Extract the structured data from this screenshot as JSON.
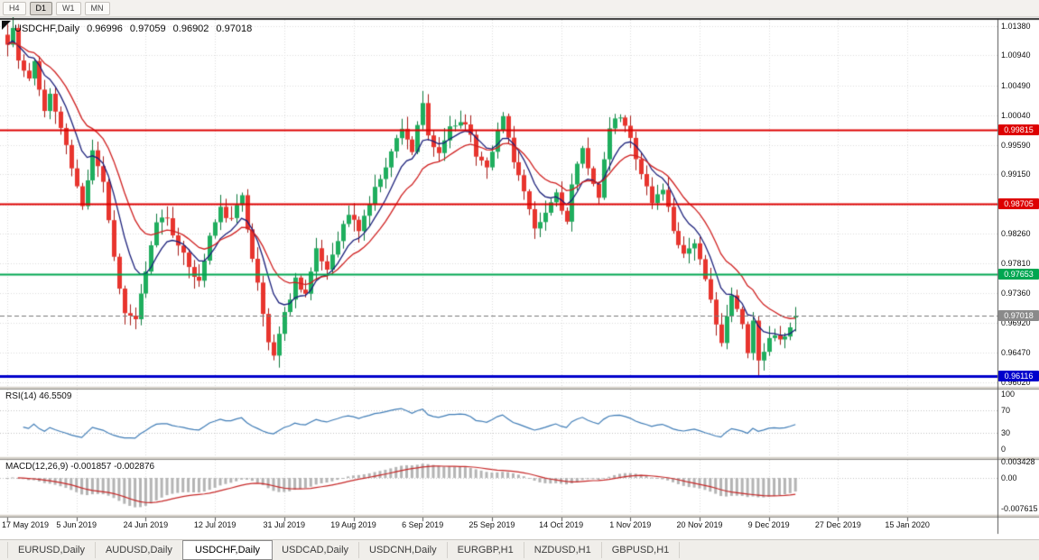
{
  "toolbar": {
    "timeframes": [
      {
        "label": "H4",
        "active": false
      },
      {
        "label": "D1",
        "active": true
      },
      {
        "label": "W1",
        "active": false
      },
      {
        "label": "MN",
        "active": false
      }
    ]
  },
  "chart_header": {
    "symbol": "USDCHF,Daily",
    "open": "0.96996",
    "high": "0.97059",
    "low": "0.96902",
    "close": "0.97018"
  },
  "main_chart": {
    "price_axis": {
      "ticks": [
        "1.01380",
        "1.00940",
        "1.00490",
        "1.00040",
        "0.99590",
        "0.99150",
        "0.98700",
        "0.98260",
        "0.97810",
        "0.97360",
        "0.96920",
        "0.96470",
        "0.96020"
      ],
      "max": 1.0138,
      "min": 0.9602
    },
    "hlines": [
      {
        "label": "0.99815",
        "value": 0.99815,
        "color": "#dd0000",
        "width": 2
      },
      {
        "label": "0.98705",
        "value": 0.98705,
        "color": "#dd0000",
        "width": 2
      },
      {
        "label": "0.97653",
        "value": 0.97653,
        "color": "#00a651",
        "width": 2
      },
      {
        "label": "0.96116",
        "value": 0.96116,
        "color": "#0000cc",
        "width": 3
      }
    ],
    "current_price": {
      "label": "0.97018",
      "value": 0.97018,
      "color": "#8a8a8a"
    }
  },
  "rsi_panel": {
    "label": "RSI(14) 46.5509",
    "value": 46.5509,
    "period": 14,
    "ticks": [
      {
        "label": "100",
        "value": 100
      },
      {
        "label": "70",
        "value": 70
      },
      {
        "label": "30",
        "value": 30
      },
      {
        "label": "0",
        "value": 0
      }
    ],
    "levels": [
      70,
      30
    ]
  },
  "macd_panel": {
    "label": "MACD(12,26,9) -0.001857 -0.002876",
    "macd_value": -0.001857,
    "signal_value": -0.002876,
    "ticks": [
      {
        "label": "0.003428",
        "value": 0.003428
      },
      {
        "label": "0.00",
        "value": 0
      },
      {
        "label": "-0.007615",
        "value": -0.007615
      }
    ],
    "max": 0.003428,
    "min": -0.007615
  },
  "date_axis": {
    "labels": [
      "17 May 2019",
      "5 Jun 2019",
      "24 Jun 2019",
      "12 Jul 2019",
      "31 Jul 2019",
      "19 Aug 2019",
      "6 Sep 2019",
      "25 Sep 2019",
      "14 Oct 2019",
      "1 Nov 2019",
      "20 Nov 2019",
      "9 Dec 2019",
      "27 Dec 2019",
      "15 Jan 2020"
    ],
    "tick_days": [
      0,
      13,
      26,
      39,
      52,
      65,
      78,
      91,
      104,
      117,
      130,
      143,
      156,
      169
    ]
  },
  "tabs": [
    {
      "label": "EURUSD,Daily",
      "active": false
    },
    {
      "label": "AUDUSD,Daily",
      "active": false
    },
    {
      "label": "USDCHF,Daily",
      "active": true
    },
    {
      "label": "USDCAD,Daily",
      "active": false
    },
    {
      "label": "USDCNH,Daily",
      "active": false
    },
    {
      "label": "EURGBP,H1",
      "active": false
    },
    {
      "label": "NZDUSD,H1",
      "active": false
    },
    {
      "label": "GBPUSD,H1",
      "active": false
    }
  ],
  "colors": {
    "up": "#1fae5e",
    "up_border": "#0d7a3c",
    "down": "#e8352e",
    "down_border": "#a51b16",
    "ma_fast": "#1a1f7a",
    "ma_slow": "#cf1f1f",
    "rsi": "#3f7cb6",
    "macd_hist": "#b4b4b4",
    "macd_signal": "#c62828",
    "grid": "#dcdcdc",
    "level": "#c0c0c0",
    "current_line": "#787878",
    "tag_current": "#8a8a8a"
  },
  "chart_data": {
    "type": "candlestick",
    "title": "USDCHF, Daily",
    "symbol": "USDCHF",
    "timeframe": "Daily",
    "last_ohlc": {
      "open": 0.96996,
      "high": 0.97059,
      "low": 0.96902,
      "close": 0.97018
    },
    "ylim": [
      0.9602,
      1.0138
    ],
    "num_candles": 149,
    "key_levels": {
      "resistance": [
        0.99815,
        0.98705
      ],
      "support_green": 0.97653,
      "low_blue": 0.96116,
      "current": 0.97018
    },
    "close_path": [
      [
        0,
        1.011
      ],
      [
        1,
        1.0135
      ],
      [
        2,
        1.0085
      ],
      [
        4,
        1.0055
      ],
      [
        5,
        1.0085
      ],
      [
        7,
        1.001
      ],
      [
        8,
        1.0035
      ],
      [
        10,
        0.9985
      ],
      [
        12,
        0.9925
      ],
      [
        14,
        0.9865
      ],
      [
        16,
        0.9955
      ],
      [
        18,
        0.9905
      ],
      [
        20,
        0.979
      ],
      [
        22,
        0.9705
      ],
      [
        24,
        0.9698
      ],
      [
        26,
        0.9765
      ],
      [
        28,
        0.9845
      ],
      [
        30,
        0.9852
      ],
      [
        32,
        0.9805
      ],
      [
        34,
        0.9778
      ],
      [
        36,
        0.9752
      ],
      [
        38,
        0.9822
      ],
      [
        40,
        0.9862
      ],
      [
        42,
        0.9845
      ],
      [
        44,
        0.9885
      ],
      [
        45,
        0.9838
      ],
      [
        47,
        0.9748
      ],
      [
        49,
        0.9662
      ],
      [
        50,
        0.9645
      ],
      [
        52,
        0.9705
      ],
      [
        54,
        0.9758
      ],
      [
        56,
        0.9736
      ],
      [
        58,
        0.9798
      ],
      [
        60,
        0.9772
      ],
      [
        62,
        0.982
      ],
      [
        64,
        0.9855
      ],
      [
        66,
        0.9832
      ],
      [
        68,
        0.9872
      ],
      [
        70,
        0.9912
      ],
      [
        72,
        0.9948
      ],
      [
        74,
        0.9988
      ],
      [
        76,
        0.995
      ],
      [
        78,
        1.0018
      ],
      [
        79,
        0.9972
      ],
      [
        81,
        0.9942
      ],
      [
        83,
        0.9988
      ],
      [
        86,
        0.9996
      ],
      [
        88,
        0.9944
      ],
      [
        90,
        0.993
      ],
      [
        93,
        1.0002
      ],
      [
        95,
        0.9938
      ],
      [
        97,
        0.9888
      ],
      [
        99,
        0.9828
      ],
      [
        101,
        0.9856
      ],
      [
        103,
        0.9888
      ],
      [
        105,
        0.9842
      ],
      [
        106,
        0.9898
      ],
      [
        108,
        0.9952
      ],
      [
        110,
        0.9905
      ],
      [
        111,
        0.9878
      ],
      [
        113,
        0.9986
      ],
      [
        115,
        1.0002
      ],
      [
        117,
        0.9968
      ],
      [
        119,
        0.9918
      ],
      [
        121,
        0.9872
      ],
      [
        123,
        0.9895
      ],
      [
        125,
        0.9832
      ],
      [
        127,
        0.9795
      ],
      [
        129,
        0.9815
      ],
      [
        131,
        0.9752
      ],
      [
        133,
        0.9695
      ],
      [
        134,
        0.9662
      ],
      [
        136,
        0.9732
      ],
      [
        138,
        0.9688
      ],
      [
        139,
        0.9652
      ],
      [
        140,
        0.9695
      ],
      [
        141,
        0.9635
      ],
      [
        142,
        0.9652
      ],
      [
        144,
        0.9678
      ],
      [
        146,
        0.9665
      ],
      [
        148,
        0.97018
      ]
    ],
    "indicators": {
      "rsi": {
        "period": 14,
        "current": 46.5509,
        "levels": [
          30,
          70
        ],
        "range": [
          0,
          100
        ]
      },
      "macd": {
        "fast": 12,
        "slow": 26,
        "signal": 9,
        "current": -0.001857,
        "signal_current": -0.002876,
        "range": [
          -0.007615,
          0.003428
        ]
      },
      "moving_averages": [
        {
          "type": "ema",
          "period": 8,
          "color": "#1a1f7a"
        },
        {
          "type": "ema",
          "period": 16,
          "color": "#cf1f1f"
        }
      ]
    }
  }
}
